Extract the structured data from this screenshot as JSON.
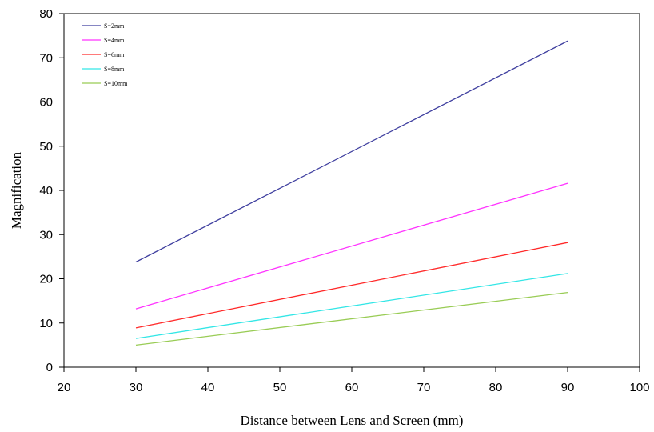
{
  "chart_data": {
    "type": "line",
    "title": "",
    "xlabel": "Distance between Lens and Screen (mm)",
    "ylabel": "Magnification",
    "xlim": [
      20,
      100
    ],
    "ylim": [
      0,
      80
    ],
    "xticks": [
      20,
      30,
      40,
      50,
      60,
      70,
      80,
      90,
      100
    ],
    "yticks": [
      0,
      10,
      20,
      30,
      40,
      50,
      60,
      70,
      80
    ],
    "grid": false,
    "legend_position": "top-left",
    "series": [
      {
        "name": "S=2mm",
        "color": "#3f3f9f",
        "x": [
          30,
          90
        ],
        "y": [
          23.8,
          73.8
        ]
      },
      {
        "name": "S=4mm",
        "color": "#ff33ff",
        "x": [
          30,
          90
        ],
        "y": [
          13.2,
          41.6
        ]
      },
      {
        "name": "S=6mm",
        "color": "#ff2a2a",
        "x": [
          30,
          90
        ],
        "y": [
          8.9,
          28.2
        ]
      },
      {
        "name": "S=8mm",
        "color": "#33e6e6",
        "x": [
          30,
          90
        ],
        "y": [
          6.5,
          21.2
        ]
      },
      {
        "name": "S=10mm",
        "color": "#99cc55",
        "x": [
          30,
          90
        ],
        "y": [
          5.0,
          16.9
        ]
      }
    ]
  }
}
